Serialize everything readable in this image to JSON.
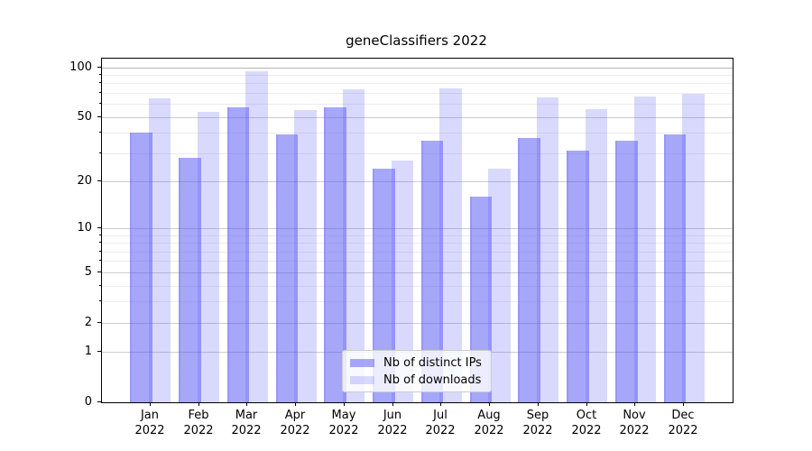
{
  "chart_data": {
    "type": "bar",
    "title": "geneClassifiers 2022",
    "categories": [
      "Jan 2022",
      "Feb 2022",
      "Mar 2022",
      "Apr 2022",
      "May 2022",
      "Jun 2022",
      "Jul 2022",
      "Aug 2022",
      "Sep 2022",
      "Oct 2022",
      "Nov 2022",
      "Dec 2022"
    ],
    "series": [
      {
        "name": "Nb of distinct IPs",
        "values": [
          40,
          28,
          57,
          39,
          57,
          24,
          36,
          16,
          37,
          31,
          36,
          39
        ]
      },
      {
        "name": "Nb of downloads",
        "values": [
          65,
          54,
          95,
          55,
          74,
          27,
          75,
          24,
          66,
          56,
          67,
          69
        ]
      }
    ],
    "xlabel": "",
    "ylabel": "",
    "yscale": "log10(1+y)",
    "yticks": [
      0,
      1,
      2,
      5,
      10,
      20,
      50,
      100
    ],
    "minor_yticks": [
      3,
      4,
      6,
      7,
      8,
      9,
      30,
      40,
      60,
      70,
      80,
      90
    ],
    "ylim": [
      0,
      113
    ],
    "grid": "both",
    "legend_position": "lower center"
  },
  "colors": {
    "bar_base_rgb": "80,80,245",
    "bar_dark_alpha": 0.5,
    "bar_light_alpha": 0.22,
    "bar_edge_alpha": 0.18,
    "grid_major": "#cdcdcd",
    "grid_minor": "#ececec",
    "grid_top_major": "#b6b6b6",
    "spine": "#000000",
    "legend_border": "#cccccc",
    "text": "#000000"
  }
}
